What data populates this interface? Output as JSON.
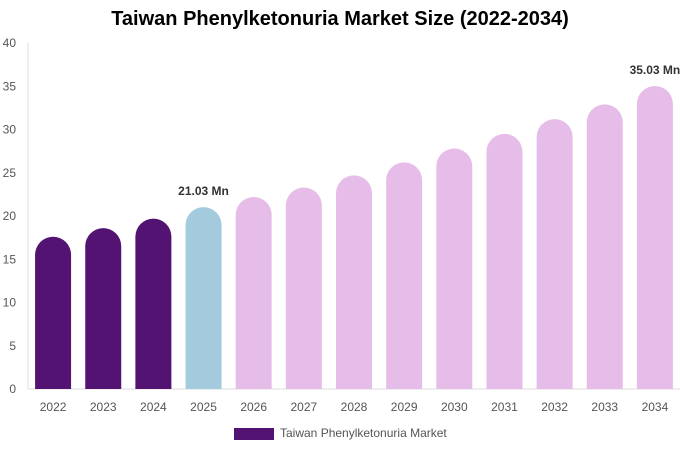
{
  "chart_data": {
    "type": "bar",
    "title": "Taiwan Phenylketonuria Market Size (2022-2034)",
    "categories": [
      "2022",
      "2023",
      "2024",
      "2025",
      "2026",
      "2027",
      "2028",
      "2029",
      "2030",
      "2031",
      "2032",
      "2033",
      "2034"
    ],
    "series": [
      {
        "name": "Taiwan Phenylketonuria Market",
        "values": [
          17.6,
          18.6,
          19.7,
          21.03,
          22.2,
          23.3,
          24.7,
          26.2,
          27.8,
          29.5,
          31.2,
          32.9,
          35.03
        ]
      }
    ],
    "data_labels": [
      {
        "category": "2025",
        "text": "21.03 Mn"
      },
      {
        "category": "2034",
        "text": "35.03 Mn"
      }
    ],
    "ylim": [
      0,
      40
    ],
    "yticks": [
      0,
      5,
      10,
      15,
      20,
      25,
      30,
      35,
      40
    ],
    "xlabel": "",
    "ylabel": "",
    "grid": false,
    "legend_position": "bottom",
    "colors": {
      "historical": "#531372",
      "current": "#a4cadd",
      "forecast": "#e6bde8",
      "axis": "#dddddd"
    },
    "bar_color_groups": [
      "historical",
      "historical",
      "historical",
      "current",
      "forecast",
      "forecast",
      "forecast",
      "forecast",
      "forecast",
      "forecast",
      "forecast",
      "forecast",
      "forecast"
    ]
  }
}
